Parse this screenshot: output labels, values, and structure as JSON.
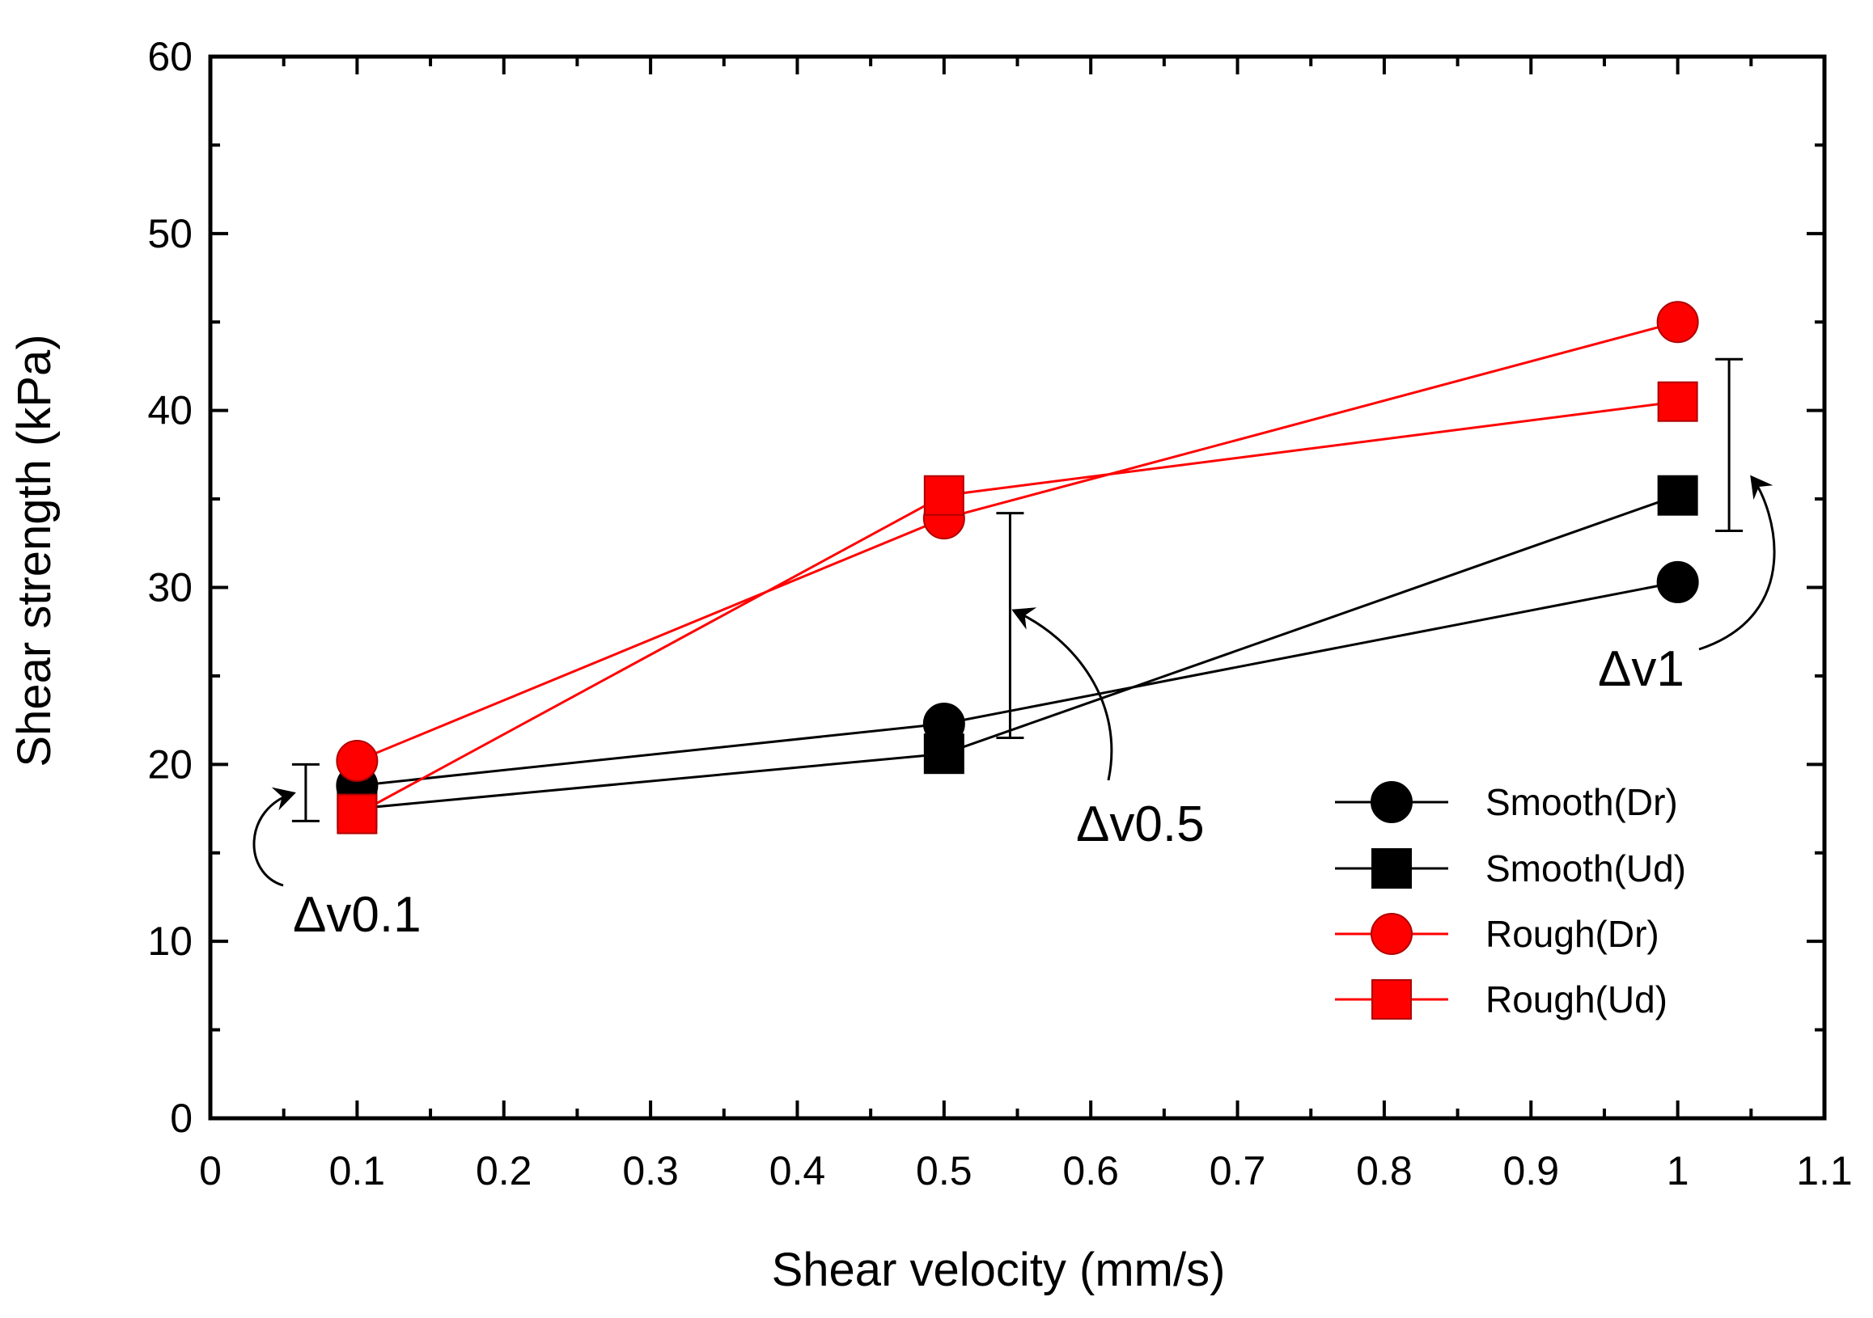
{
  "chart_data": {
    "type": "line",
    "xlabel": "Shear velocity (mm/s)",
    "ylabel": "Shear strength (kPa)",
    "xlim": [
      0,
      1.1
    ],
    "ylim": [
      0,
      60
    ],
    "x_ticks": [
      "0",
      "0.1",
      "0.2",
      "0.3",
      "0.4",
      "0.5",
      "0.6",
      "0.7",
      "0.8",
      "0.9",
      "1",
      "1.1"
    ],
    "y_ticks": [
      "0",
      "10",
      "20",
      "30",
      "40",
      "50",
      "60"
    ],
    "legend_position": "bottom-right",
    "series": [
      {
        "name": "Smooth(Dr)",
        "color": "#000000",
        "marker": "circle",
        "x": [
          0.1,
          0.5,
          1.0
        ],
        "y": [
          18.8,
          22.3,
          30.3
        ]
      },
      {
        "name": "Smooth(Ud)",
        "color": "#000000",
        "marker": "square",
        "x": [
          0.1,
          0.5,
          1.0
        ],
        "y": [
          17.5,
          20.6,
          35.2
        ]
      },
      {
        "name": "Rough(Dr)",
        "color": "#ff0000",
        "marker": "circle",
        "x": [
          0.1,
          0.5,
          1.0
        ],
        "y": [
          20.2,
          33.9,
          45.0
        ]
      },
      {
        "name": "Rough(Ud)",
        "color": "#ff0000",
        "marker": "square",
        "x": [
          0.1,
          0.5,
          1.0
        ],
        "y": [
          17.2,
          35.2,
          40.5
        ]
      }
    ],
    "annotations": [
      {
        "label": "Δv0.1",
        "bar_x": 0.065,
        "bar_y": [
          16.8,
          20.0
        ]
      },
      {
        "label": "Δv0.5",
        "bar_x": 0.545,
        "bar_y": [
          21.5,
          34.2
        ]
      },
      {
        "label": "Δv1",
        "bar_x": 1.035,
        "bar_y": [
          33.2,
          42.9
        ]
      }
    ]
  }
}
